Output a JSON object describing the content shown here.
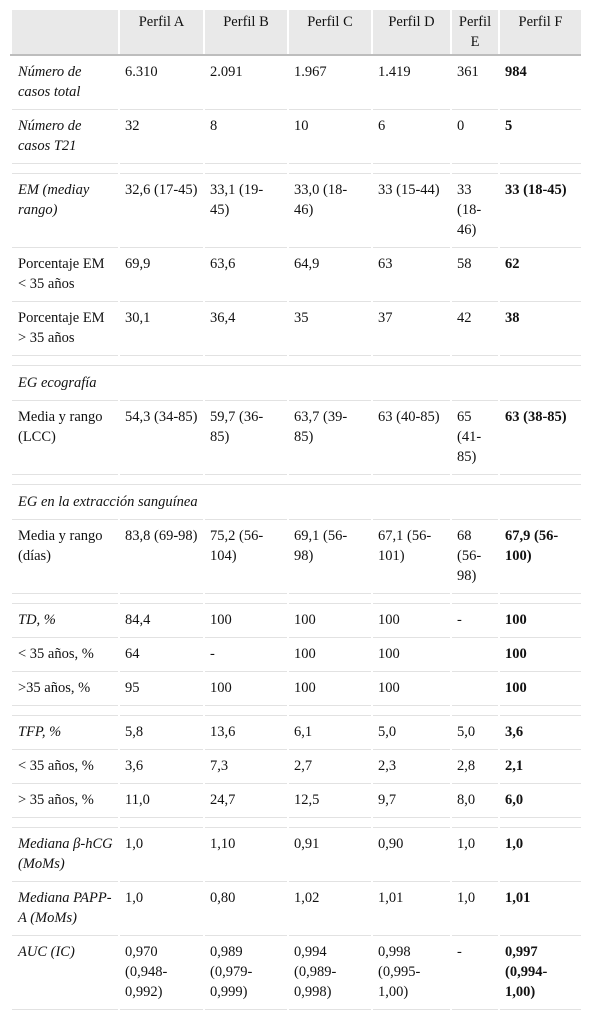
{
  "table": {
    "header": [
      "Perfil A",
      "Perfil B",
      "Perfil C",
      "Perfil D",
      "Perfil E",
      "Perfil F"
    ],
    "groups": [
      [
        {
          "cells": [
            "Número de casos total",
            "6.310",
            "2.091",
            "1.967",
            "1.419",
            "361",
            "984"
          ],
          "italic": true
        },
        {
          "cells": [
            "Número de casos T21",
            "32",
            "8",
            "10",
            "6",
            "0",
            "5"
          ],
          "italic": true
        }
      ],
      [
        {
          "cells": [
            "EM (mediay rango)",
            "32,6 (17-45)",
            "33,1 (19-45)",
            "33,0 (18-46)",
            "33 (15-44)",
            "33 (18-46)",
            "33 (18-45)"
          ],
          "italic": true
        },
        {
          "cells": [
            "Porcentaje EM < 35 años",
            "69,9",
            "63,6",
            "64,9",
            "63",
            "58",
            "62"
          ],
          "italic": false
        },
        {
          "cells": [
            "Porcentaje EM > 35 años",
            "30,1",
            "36,4",
            "35",
            "37",
            "42",
            "38"
          ],
          "italic": false
        }
      ],
      [
        {
          "section": "EG ecografía"
        },
        {
          "cells": [
            "Media y rango (LCC)",
            "54,3 (34-85)",
            "59,7 (36-85)",
            "63,7 (39-85)",
            "63 (40-85)",
            "65 (41-85)",
            "63 (38-85)"
          ],
          "italic": false
        }
      ],
      [
        {
          "section": "EG en la extracción sanguínea"
        },
        {
          "cells": [
            "Media y rango (días)",
            "83,8 (69-98)",
            "75,2 (56-104)",
            "69,1 (56-98)",
            "67,1 (56-101)",
            "68 (56-98)",
            "67,9 (56-100)"
          ],
          "italic": false
        }
      ],
      [
        {
          "cells": [
            "TD, %",
            "84,4",
            "100",
            "100",
            "100",
            "-",
            "100"
          ],
          "italic": true
        },
        {
          "cells": [
            "< 35 años, %",
            "64",
            "-",
            "100",
            "100",
            null,
            "100"
          ],
          "italic": false
        },
        {
          "cells": [
            ">35 años, %",
            "95",
            "100",
            "100",
            "100",
            null,
            "100"
          ],
          "italic": false
        }
      ],
      [
        {
          "cells": [
            "TFP, %",
            "5,8",
            "13,6",
            "6,1",
            "5,0",
            "5,0",
            "3,6"
          ],
          "italic": true
        },
        {
          "cells": [
            "< 35 años, %",
            "3,6",
            "7,3",
            "2,7",
            "2,3",
            "2,8",
            "2,1"
          ],
          "italic": false
        },
        {
          "cells": [
            "> 35 años, %",
            "11,0",
            "24,7",
            "12,5",
            "9,7",
            "8,0",
            "6,0"
          ],
          "italic": false
        }
      ],
      [
        {
          "cells": [
            "Mediana β-hCG (MoMs)",
            "1,0",
            "1,10",
            "0,91",
            "0,90",
            "1,0",
            "1,0"
          ],
          "italic": true
        },
        {
          "cells": [
            "Mediana PAPP-A (MoMs)",
            "1,0",
            "0,80",
            "1,02",
            "1,01",
            "1,0",
            "1,01"
          ],
          "italic": true
        },
        {
          "cells": [
            "AUC (IC)",
            "0,970 (0,948-0,992)",
            "0,989 (0,979-0,999)",
            "0,994 (0,989-0,998)",
            "0,998 (0,995-1,00)",
            "-",
            "0,997 (0,994-1,00)"
          ],
          "italic": true
        }
      ]
    ]
  }
}
